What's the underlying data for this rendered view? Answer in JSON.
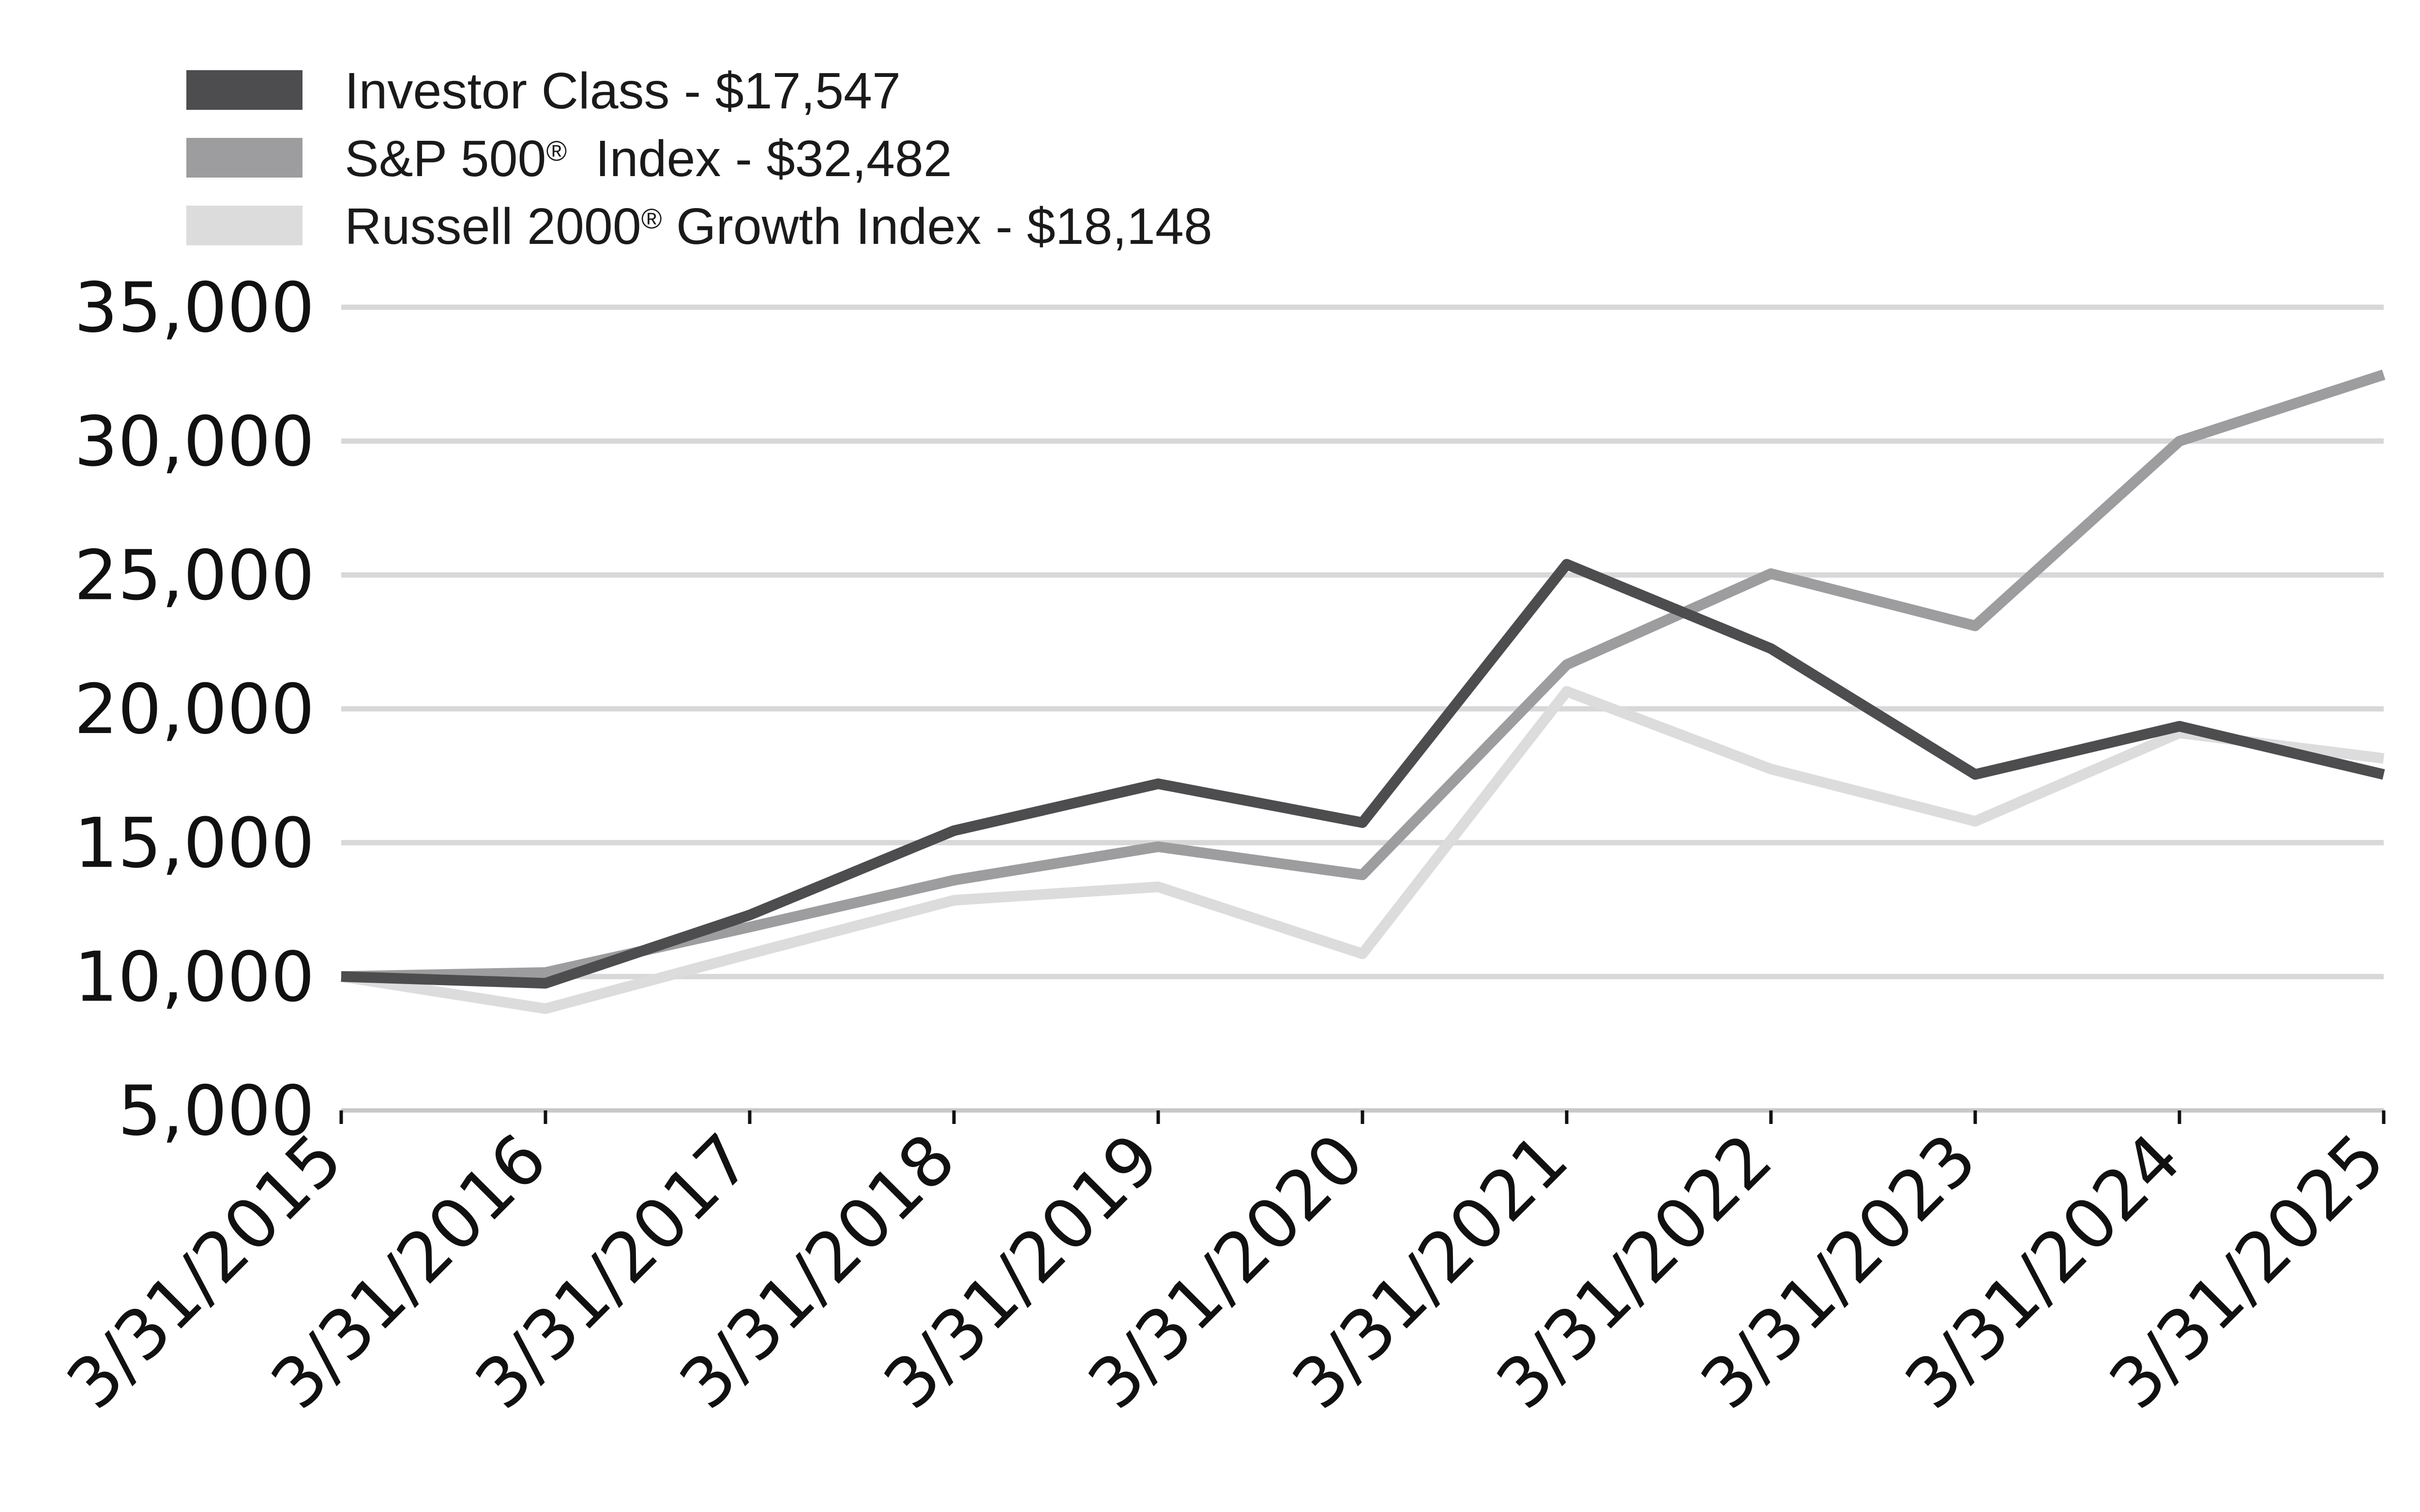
{
  "chart_data": {
    "type": "line",
    "title": "",
    "xlabel": "",
    "ylabel": "",
    "categories": [
      "3/31/2015",
      "3/31/2016",
      "3/31/2017",
      "3/31/2018",
      "3/31/2019",
      "3/31/2020",
      "3/31/2021",
      "3/31/2022",
      "3/31/2023",
      "3/31/2024",
      "3/31/2025"
    ],
    "ylim": [
      5000,
      35000
    ],
    "yticks": [
      5000,
      10000,
      15000,
      20000,
      25000,
      30000,
      35000
    ],
    "ytick_labels": [
      "5,000",
      "10,000",
      "15,000",
      "20,000",
      "25,000",
      "30,000",
      "35,000"
    ],
    "grid": true,
    "legend_position": "top-left",
    "series": [
      {
        "name": "Investor Class - $17,547",
        "label_main": "Investor Class - $17,547",
        "color": "#4d4d4f",
        "values": [
          10000,
          9750,
          12300,
          15450,
          17200,
          15750,
          25400,
          22250,
          17550,
          19350,
          17547
        ]
      },
      {
        "name": "S&P 500® Index - $32,482",
        "label_main": "S&P 500",
        "label_reg": "®",
        "label_rest": "  Index - $32,482",
        "color": "#9d9da0",
        "values": [
          10000,
          10150,
          11850,
          13600,
          14850,
          13800,
          21650,
          25050,
          23100,
          30000,
          32482
        ]
      },
      {
        "name": "Russell 2000® Growth Index - $18,148",
        "label_main": "Russell 2000",
        "label_reg": "®",
        "label_rest": " Growth Index - $18,148",
        "color": "#dcdcdc",
        "values": [
          10000,
          8800,
          10850,
          12850,
          13350,
          10850,
          20650,
          17750,
          15800,
          19100,
          18148
        ]
      }
    ]
  }
}
